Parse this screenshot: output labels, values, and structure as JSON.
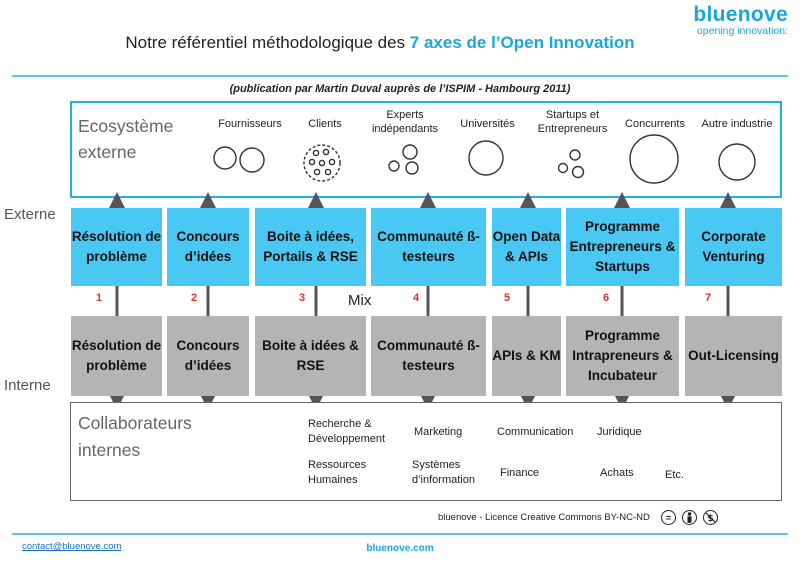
{
  "header": {
    "title_prefix": "Notre référentiel méthodologique des ",
    "title_highlight": "7 axes de l’Open Innovation",
    "logo_brand": "bluenove",
    "logo_tagline": "opening innovation:",
    "publication": "(publication par Martin Duval auprès de l’ISPIM - Hambourg 2011)"
  },
  "ecosystem": {
    "title_line1": "Ecosystème",
    "title_line2": "externe",
    "items": [
      {
        "label": "Fournisseurs"
      },
      {
        "label": "Clients"
      },
      {
        "label": "Experts indépendants"
      },
      {
        "label": "Universités"
      },
      {
        "label": "Startups et Entrepreneurs"
      },
      {
        "label": "Concurrents"
      },
      {
        "label": "Autre industrie"
      }
    ]
  },
  "side_labels": {
    "externe": "Externe",
    "interne": "Interne"
  },
  "external_row": [
    "Résolution de problème",
    "Concours d’idées",
    "Boite à idées, Portails & RSE",
    "Communauté ß-testeurs",
    "Open Data & APIs",
    "Programme Entrepreneurs & Startups",
    "Corporate Venturing"
  ],
  "numbers": [
    "1",
    "2",
    "3",
    "4",
    "5",
    "6",
    "7"
  ],
  "mix_label": "Mix",
  "internal_row": [
    "Résolution de problème",
    "Concours d’idées",
    "Boite à idées & RSE",
    "Communauté ß-testeurs",
    "APIs & KM",
    "Programme Intrapreneurs & Incubateur",
    "Out-Licensing"
  ],
  "collaborators": {
    "title_line1": "Collaborateurs",
    "title_line2": "internes",
    "items": [
      "Recherche & Développement",
      "Marketing",
      "Communication",
      "Juridique",
      "Ressources Humaines",
      "Systèmes d’information",
      "Finance",
      "Achats",
      "Etc."
    ]
  },
  "footer": {
    "license": "bluenove - Licence Creative Commons BY-NC-ND",
    "contact": "contact@bluenove.com",
    "site": "bluenove.com"
  },
  "colors": {
    "accent": "#1aa7dd",
    "external_box": "#49c8f3",
    "internal_box": "#b4b4b4",
    "number": "#e03030"
  },
  "icons": [
    "equals-circle-icon",
    "person-circle-icon",
    "dollar-strike-circle-icon"
  ]
}
